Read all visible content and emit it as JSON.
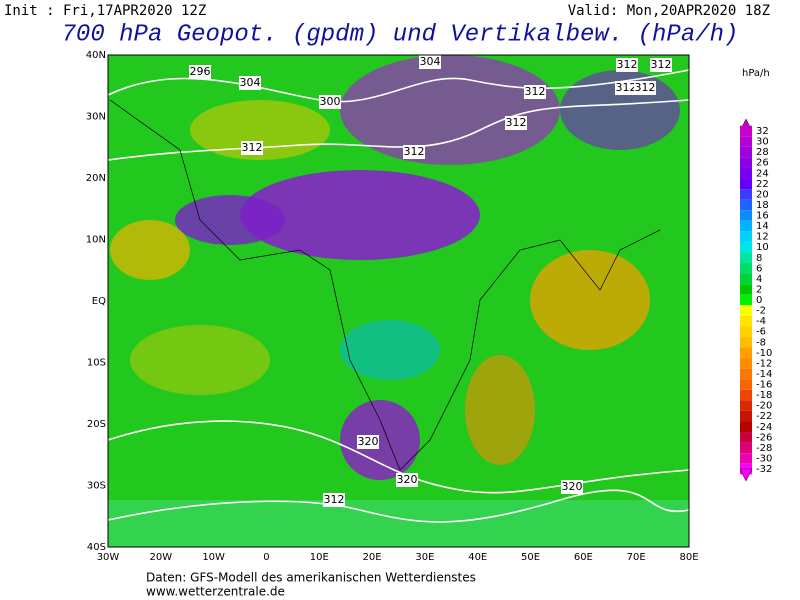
{
  "header": {
    "init": "Init : Fri,17APR2020 12Z",
    "valid": "Valid: Mon,20APR2020 18Z",
    "title": "700 hPa Geopot. (gpdm) und Vertikalbew. (hPa/h)"
  },
  "legend": {
    "unit": "hPa/h",
    "labels": [
      "32",
      "30",
      "28",
      "26",
      "24",
      "22",
      "20",
      "18",
      "16",
      "14",
      "12",
      "10",
      "8",
      "6",
      "4",
      "2",
      "0",
      "-2",
      "-4",
      "-6",
      "-8",
      "-10",
      "-12",
      "-14",
      "-16",
      "-18",
      "-20",
      "-22",
      "-24",
      "-26",
      "-28",
      "-30",
      "-32"
    ],
    "colors": [
      "#c800c8",
      "#b400d2",
      "#a000dc",
      "#8c00e6",
      "#7800f0",
      "#6400fa",
      "#3c3cff",
      "#1e64ff",
      "#0a8cff",
      "#00b4ff",
      "#00d2ff",
      "#00e6e6",
      "#00e6a0",
      "#00dc64",
      "#00d23c",
      "#00c800",
      "#00f000",
      "#ffff00",
      "#ffe600",
      "#ffd200",
      "#ffbe00",
      "#ffa000",
      "#ff8c00",
      "#ff7800",
      "#ff6400",
      "#f04600",
      "#dc2800",
      "#c81400",
      "#b40000",
      "#c8003c",
      "#dc0078",
      "#f000b4",
      "#ff00ff"
    ]
  },
  "axes": {
    "lat": [
      "40N",
      "30N",
      "20N",
      "10N",
      "EQ",
      "10S",
      "20S",
      "30S",
      "40S"
    ],
    "lon": [
      "30W",
      "20W",
      "10W",
      "0",
      "10E",
      "20E",
      "30E",
      "40E",
      "50E",
      "60E",
      "70E",
      "80E"
    ]
  },
  "contour_labels": [
    "296",
    "304",
    "300",
    "304",
    "312",
    "312",
    "312",
    "312",
    "312",
    "312",
    "312",
    "312",
    "320",
    "320",
    "320",
    "312"
  ],
  "footer": {
    "source": "Daten: GFS-Modell des amerikanischen Wetterdienstes",
    "url": "www.wetterzentrale.de"
  }
}
